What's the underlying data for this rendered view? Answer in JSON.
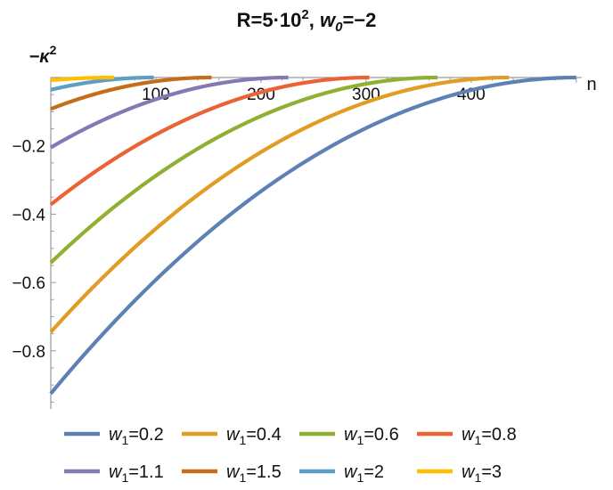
{
  "chart_data": {
    "type": "line",
    "title": {
      "prefix": "R=5·10",
      "exp": "2",
      "sep": ", ",
      "w": "w",
      "wsub": "0",
      "suffix": "=−2"
    },
    "xlabel": "n",
    "ylabel": {
      "base": "−κ",
      "exp": "2"
    },
    "xlim": [
      0,
      505
    ],
    "ylim": [
      -0.97,
      0.0
    ],
    "xticks": [
      100,
      200,
      300,
      400
    ],
    "xtick_labels": [
      "100",
      "200",
      "300",
      "400"
    ],
    "yticks": [
      -0.2,
      -0.4,
      -0.6,
      -0.8
    ],
    "ytick_labels": [
      "−0.2",
      "−0.4",
      "−0.6",
      "−0.8"
    ],
    "grid": false,
    "legend_placement": "bottom",
    "series": [
      {
        "name": "w₁=0.2",
        "label_var": "w",
        "label_sub": "1",
        "label_val": "=0.2",
        "color": "#5E81B5",
        "x_end": 500,
        "y0": -0.925
      },
      {
        "name": "w₁=0.4",
        "label_var": "w",
        "label_sub": "1",
        "label_val": "=0.4",
        "color": "#E19C24",
        "x_end": 436,
        "y0": -0.745
      },
      {
        "name": "w₁=0.6",
        "label_var": "w",
        "label_sub": "1",
        "label_val": "=0.6",
        "color": "#8FB032",
        "x_end": 368,
        "y0": -0.542
      },
      {
        "name": "w₁=0.8",
        "label_var": "w",
        "label_sub": "1",
        "label_val": "=0.8",
        "color": "#EB6235",
        "x_end": 303,
        "y0": -0.372
      },
      {
        "name": "w₁=1.1",
        "label_var": "w",
        "label_sub": "1",
        "label_val": "=1.1",
        "color": "#8778B3",
        "x_end": 226,
        "y0": -0.205
      },
      {
        "name": "w₁=1.5",
        "label_var": "w",
        "label_sub": "1",
        "label_val": "=1.5",
        "color": "#C56E1A",
        "x_end": 153,
        "y0": -0.092
      },
      {
        "name": "w₁=2",
        "label_var": "w",
        "label_sub": "1",
        "label_val": "=2",
        "color": "#5D9EC7",
        "x_end": 98,
        "y0": -0.036
      },
      {
        "name": "w₁=3",
        "label_var": "w",
        "label_sub": "1",
        "label_val": "=3",
        "color": "#FFBF00",
        "x_end": 60,
        "y0": -0.008
      }
    ]
  }
}
